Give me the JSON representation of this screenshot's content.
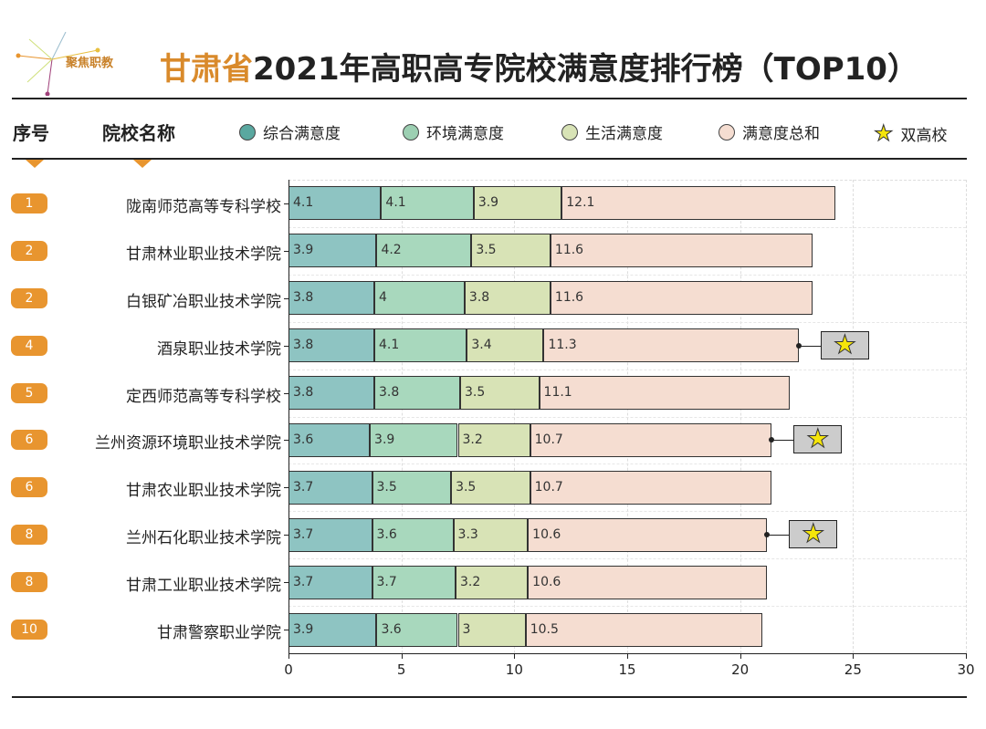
{
  "logo_text": "聚焦职教",
  "title_highlight": "甘肃省",
  "title_rest": "2021年高职高专院校满意度排行榜（TOP10）",
  "headers": {
    "rank": "序号",
    "school": "院校名称"
  },
  "colors": {
    "s1": "#8ec4c2",
    "s2": "#a8d8bd",
    "s3": "#d8e3b6",
    "s4": "#f5ddd1",
    "accent": "#e8952f"
  },
  "chart_data": {
    "type": "bar",
    "stacked": true,
    "orientation": "horizontal",
    "xlim": [
      0,
      30
    ],
    "xticks": [
      0,
      5,
      10,
      15,
      20,
      25,
      30
    ],
    "legend": [
      {
        "name": "综合满意度"
      },
      {
        "name": "环境满意度"
      },
      {
        "name": "生活满意度"
      },
      {
        "name": "满意度总和"
      },
      {
        "name": "双高校"
      }
    ],
    "ranks": [
      "1",
      "2",
      "2",
      "4",
      "5",
      "6",
      "6",
      "8",
      "8",
      "10"
    ],
    "categories": [
      "陇南师范高等专科学校",
      "甘肃林业职业技术学院",
      "白银矿冶职业技术学院",
      "酒泉职业技术学院",
      "定西师范高等专科学校",
      "兰州资源环境职业技术学院",
      "甘肃农业职业技术学院",
      "兰州石化职业技术学院",
      "甘肃工业职业技术学院",
      "甘肃警察职业学院"
    ],
    "series": [
      {
        "name": "综合满意度",
        "values": [
          4.1,
          3.9,
          3.8,
          3.8,
          3.8,
          3.6,
          3.7,
          3.7,
          3.7,
          3.9
        ]
      },
      {
        "name": "环境满意度",
        "values": [
          4.1,
          4.2,
          4,
          4.1,
          3.8,
          3.9,
          3.5,
          3.6,
          3.7,
          3.6
        ]
      },
      {
        "name": "生活满意度",
        "values": [
          3.9,
          3.5,
          3.8,
          3.4,
          3.5,
          3.2,
          3.5,
          3.3,
          3.2,
          3
        ]
      },
      {
        "name": "满意度总和",
        "values": [
          12.1,
          11.6,
          11.6,
          11.3,
          11.1,
          10.7,
          10.7,
          10.6,
          10.6,
          10.5
        ]
      }
    ],
    "double_high": [
      false,
      false,
      false,
      true,
      false,
      true,
      false,
      true,
      false,
      false
    ]
  }
}
